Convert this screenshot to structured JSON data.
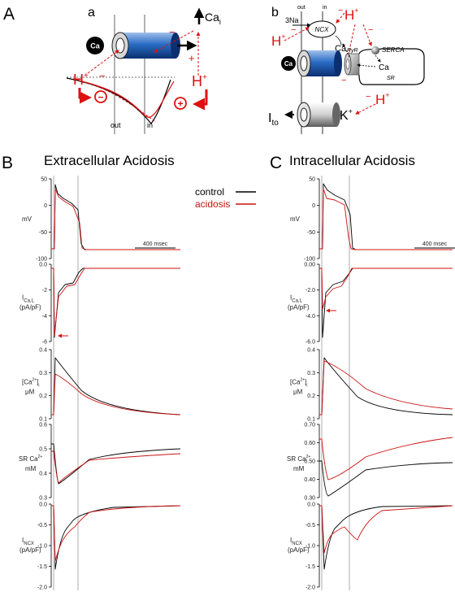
{
  "panels": {
    "A": "A",
    "a": "a",
    "b": "b",
    "B": "B",
    "C": "C"
  },
  "schematic_a": {
    "ca_label": "Ca",
    "cai_label": "Ca",
    "cai_sub": "i",
    "proton": "H",
    "proton_sup": "+",
    "minus": "−",
    "plus": "+",
    "circle_minus": "−",
    "circle_plus": "+",
    "out_label": "out",
    "in_label": "in"
  },
  "schematic_b": {
    "out_label": "out",
    "in_label": "in",
    "na_label": "3Na",
    "ncx_label": "NCX",
    "ca_label": "Ca",
    "ca_left": "Ca",
    "ca_sr": "Ca",
    "ryr_label": "RyR",
    "serca_label": "SERCA",
    "sr_label": "SR",
    "proton": "H",
    "proton_sup": "+",
    "ito_label": "I",
    "ito_sub": "to",
    "k_label": "K",
    "k_sup": "+",
    "minus": "−"
  },
  "titles": {
    "B": "Extracellular Acidosis",
    "C": "Intracellular Acidosis"
  },
  "legend": {
    "control": "control",
    "acidosis": "acidosis"
  },
  "scale_bar": "400 msec",
  "colors": {
    "control": "#000000",
    "acidosis": "#cc1111",
    "accent_red": "#dd1111",
    "channel_blue": "#1f5fb5"
  },
  "rows": [
    {
      "id": "mv",
      "ylabel": [
        "mV"
      ],
      "ticks": [
        "50",
        "0",
        "-50",
        "-100"
      ]
    },
    {
      "id": "ical",
      "ylabel": [
        "I",
        "Ca,L",
        "(pA/pF)"
      ],
      "ticks_B": [
        "0.0",
        "-2",
        "-4",
        "-6"
      ],
      "ticks_C": [
        "0.00",
        "-2.0",
        "-4.0",
        "-6.0"
      ]
    },
    {
      "id": "cai",
      "ylabel": [
        "[Ca",
        "2+",
        "]",
        "i",
        "μM"
      ],
      "ticks": [
        "0.4",
        "0.3",
        "0.2",
        "0.1"
      ]
    },
    {
      "id": "sr",
      "ylabel": [
        "SR Ca",
        "2+",
        "mM"
      ],
      "ticks_B": [
        "0.6",
        "0.5",
        "0.4",
        "0.3"
      ],
      "ticks_C": [
        "0.70",
        "0.60",
        "0.50",
        "0.40",
        "0.30"
      ]
    },
    {
      "id": "incx",
      "ylabel": [
        "I",
        "NCX",
        "(pA/pF)"
      ],
      "ticks": [
        "0.0",
        "-0.5",
        "-1.0",
        "-1.5",
        "-2.0"
      ]
    }
  ]
}
